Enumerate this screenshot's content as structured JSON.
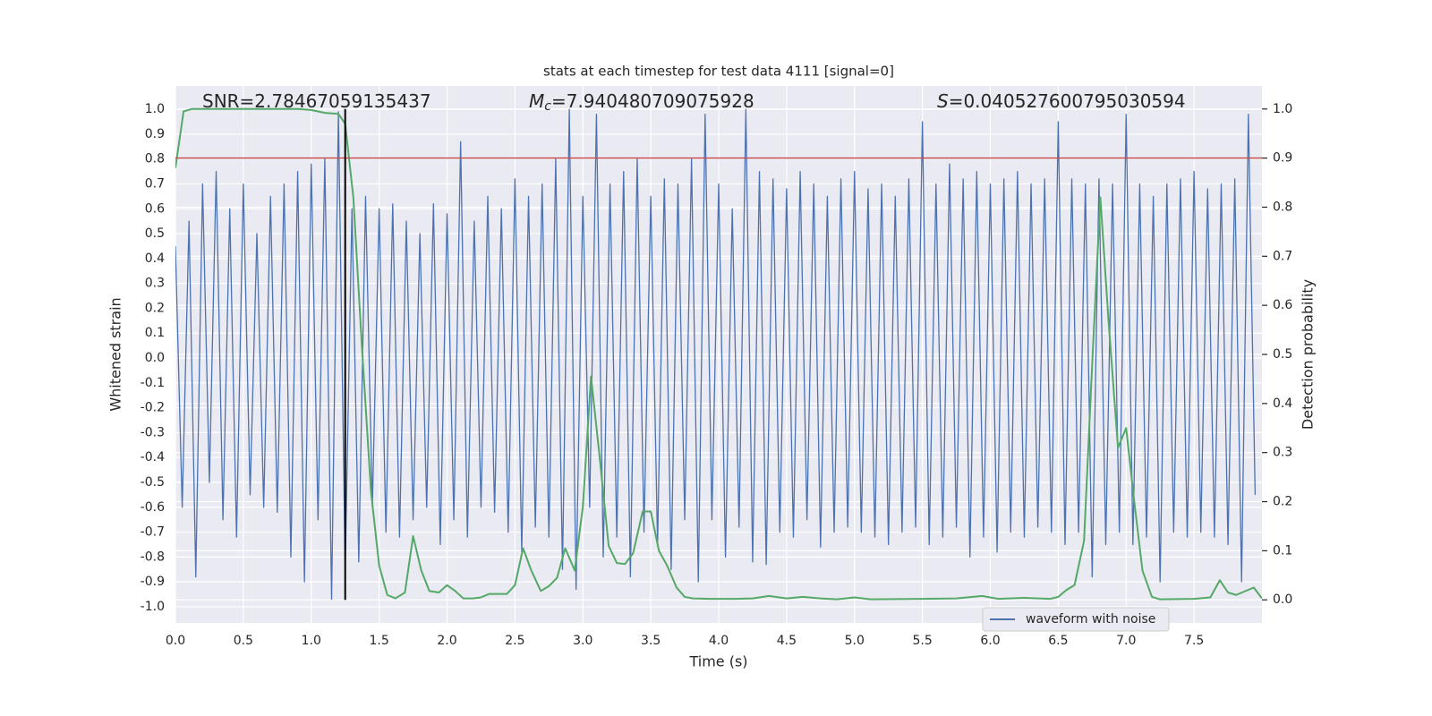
{
  "chart_data": {
    "type": "line",
    "title": "stats at each timestep for test data 4111 [signal=0]",
    "xlabel": "Time (s)",
    "ylabel": "Whitened strain",
    "y2label": "Detection probability",
    "annotations": [
      {
        "text": "SNR=2.78467059135437"
      },
      {
        "symbol": "M",
        "subscript": "c",
        "text": "=7.940480709075928"
      },
      {
        "symbol": "S",
        "text": "=0.040527600795030594"
      }
    ],
    "xlim": [
      0,
      8
    ],
    "xticks": [
      {
        "value": 0,
        "label": "0.0"
      },
      0.5,
      {
        "value": 1,
        "label": "1.0"
      },
      1.5,
      {
        "value": 2,
        "label": "2.0"
      },
      2.5,
      {
        "value": 3,
        "label": "3.0"
      },
      3.5,
      {
        "value": 4,
        "label": "4.0"
      },
      4.5,
      {
        "value": 5,
        "label": "5.0"
      },
      5.5,
      {
        "value": 6,
        "label": "6.0"
      },
      6.5,
      {
        "value": 7,
        "label": "7.0"
      },
      7.5
    ],
    "ylim": [
      -1.065,
      1.094
    ],
    "yticks": [
      {
        "value": -1,
        "label": "-1.0"
      },
      -0.9,
      -0.8,
      -0.7,
      -0.6,
      -0.5,
      -0.4,
      -0.3,
      -0.2,
      -0.1,
      {
        "value": 0,
        "label": "0.0"
      },
      0.1,
      0.2,
      0.3,
      0.4,
      0.5,
      0.6,
      0.7,
      0.8,
      0.9,
      {
        "value": 1,
        "label": "1.0"
      }
    ],
    "y2lim": [
      -0.047,
      1.047
    ],
    "y2ticks": [
      {
        "value": 0,
        "label": "0.0"
      },
      0.1,
      0.2,
      0.3,
      0.4,
      0.5,
      0.6,
      0.7,
      0.8,
      0.9,
      {
        "value": 1,
        "label": "1.0"
      }
    ],
    "grid": true,
    "legend": "lower right",
    "threshold": {
      "value": 0.9,
      "axis": "y2",
      "color": "#c44e52"
    },
    "vline": {
      "x": 1.25,
      "color": "#000000"
    },
    "series": [
      {
        "name": "waveform with noise",
        "color": "#4c72b0",
        "x": [
          0,
          0.05,
          0.1,
          0.15,
          0.2,
          0.25,
          0.3,
          0.35,
          0.4,
          0.45,
          0.5,
          0.55,
          0.6,
          0.65,
          0.7,
          0.75,
          0.8,
          0.85,
          0.9,
          0.95,
          1,
          1.05,
          1.1,
          1.15,
          1.2,
          1.25,
          1.3,
          1.35,
          1.4,
          1.45,
          1.5,
          1.55,
          1.6,
          1.65,
          1.7,
          1.75,
          1.8,
          1.85,
          1.9,
          1.95,
          2,
          2.05,
          2.1,
          2.15,
          2.2,
          2.25,
          2.3,
          2.35,
          2.4,
          2.45,
          2.5,
          2.55,
          2.6,
          2.65,
          2.7,
          2.75,
          2.8,
          2.85,
          2.9,
          2.95,
          3,
          3.05,
          3.1,
          3.15,
          3.2,
          3.25,
          3.3,
          3.35,
          3.4,
          3.45,
          3.5,
          3.55,
          3.6,
          3.65,
          3.7,
          3.75,
          3.8,
          3.85,
          3.9,
          3.95,
          4,
          4.05,
          4.1,
          4.15,
          4.2,
          4.25,
          4.3,
          4.35,
          4.4,
          4.45,
          4.5,
          4.55,
          4.6,
          4.65,
          4.7,
          4.75,
          4.8,
          4.85,
          4.9,
          4.95,
          5,
          5.05,
          5.1,
          5.15,
          5.2,
          5.25,
          5.3,
          5.35,
          5.4,
          5.45,
          5.5,
          5.55,
          5.6,
          5.65,
          5.7,
          5.75,
          5.8,
          5.85,
          5.9,
          5.95,
          6,
          6.05,
          6.1,
          6.15,
          6.2,
          6.25,
          6.3,
          6.35,
          6.4,
          6.45,
          6.5,
          6.55,
          6.6,
          6.65,
          6.7,
          6.75,
          6.8,
          6.85,
          6.9,
          6.95,
          7,
          7.05,
          7.1,
          7.15,
          7.2,
          7.25,
          7.3,
          7.35,
          7.4,
          7.45,
          7.5,
          7.55,
          7.6,
          7.65,
          7.7,
          7.75,
          7.8,
          7.85,
          7.9,
          7.95
        ],
        "values": [
          0.45,
          -0.6,
          0.55,
          -0.88,
          0.7,
          -0.5,
          0.75,
          -0.65,
          0.6,
          -0.72,
          0.7,
          -0.55,
          0.5,
          -0.6,
          0.65,
          -0.62,
          0.7,
          -0.8,
          0.75,
          -0.9,
          0.78,
          -0.65,
          0.8,
          -0.97,
          0.99,
          -0.85,
          0.6,
          -0.82,
          0.65,
          -0.6,
          0.6,
          -0.7,
          0.62,
          -0.72,
          0.55,
          -0.65,
          0.5,
          -0.6,
          0.62,
          -0.75,
          0.58,
          -0.65,
          0.87,
          -0.72,
          0.55,
          -0.6,
          0.65,
          -0.62,
          0.6,
          -0.7,
          0.72,
          -0.78,
          0.65,
          -0.68,
          0.7,
          -0.72,
          0.8,
          -0.85,
          1.0,
          -0.93,
          0.65,
          -0.6,
          0.98,
          -0.8,
          0.7,
          -0.72,
          0.75,
          -0.88,
          0.8,
          -0.7,
          0.65,
          -0.75,
          0.72,
          -0.85,
          0.7,
          -0.65,
          0.8,
          -0.9,
          0.98,
          -0.65,
          0.7,
          -0.8,
          0.6,
          -0.68,
          1.0,
          -0.82,
          0.75,
          -0.83,
          0.72,
          -0.7,
          0.68,
          -0.72,
          0.75,
          -0.65,
          0.7,
          -0.76,
          0.65,
          -0.7,
          0.72,
          -0.68,
          0.75,
          -0.7,
          0.68,
          -0.72,
          0.7,
          -0.75,
          0.65,
          -0.7,
          0.72,
          -0.68,
          0.95,
          -0.75,
          0.7,
          -0.72,
          0.78,
          -0.68,
          0.72,
          -0.8,
          0.75,
          -0.72,
          0.7,
          -0.78,
          0.72,
          -0.7,
          0.75,
          -0.72,
          0.7,
          -0.68,
          0.72,
          -0.7,
          0.95,
          -0.75,
          0.72,
          -0.7,
          0.7,
          -0.88,
          0.72,
          -0.75,
          0.7,
          -0.7,
          0.98,
          -0.75,
          0.7,
          -0.72,
          0.65,
          -0.9,
          0.7,
          -0.7,
          0.72,
          -0.72,
          0.75,
          -0.7,
          0.68,
          -0.72,
          0.7,
          -0.75,
          0.72,
          -0.9,
          0.98,
          -0.55
        ]
      },
      {
        "color": "#55a868",
        "axis": "y2",
        "x": [
          0,
          0.06,
          0.12,
          0.3,
          0.6,
          0.9,
          1.0,
          1.1,
          1.2,
          1.25,
          1.31,
          1.37,
          1.44,
          1.5,
          1.56,
          1.62,
          1.69,
          1.75,
          1.81,
          1.87,
          1.94,
          2.0,
          2.06,
          2.12,
          2.19,
          2.25,
          2.31,
          2.44,
          2.5,
          2.56,
          2.62,
          2.69,
          2.75,
          2.81,
          2.87,
          2.94,
          3.0,
          3.06,
          3.12,
          3.19,
          3.25,
          3.31,
          3.37,
          3.44,
          3.5,
          3.56,
          3.62,
          3.69,
          3.75,
          3.81,
          3.94,
          4.12,
          4.25,
          4.37,
          4.5,
          4.62,
          4.75,
          4.87,
          5.0,
          5.12,
          5.5,
          5.75,
          5.94,
          6.06,
          6.25,
          6.44,
          6.5,
          6.56,
          6.62,
          6.69,
          6.75,
          6.81,
          6.87,
          6.94,
          7.0,
          7.06,
          7.12,
          7.19,
          7.25,
          7.5,
          7.62,
          7.69,
          7.75,
          7.81,
          7.94,
          8.0
        ],
        "values": [
          0.88,
          0.995,
          1.0,
          1.0,
          1.0,
          1.0,
          0.998,
          0.992,
          0.99,
          0.97,
          0.82,
          0.53,
          0.22,
          0.07,
          0.01,
          0.003,
          0.015,
          0.13,
          0.06,
          0.018,
          0.015,
          0.03,
          0.018,
          0.003,
          0.003,
          0.005,
          0.012,
          0.012,
          0.03,
          0.105,
          0.06,
          0.018,
          0.028,
          0.045,
          0.105,
          0.06,
          0.19,
          0.455,
          0.3,
          0.11,
          0.075,
          0.073,
          0.095,
          0.18,
          0.18,
          0.1,
          0.07,
          0.025,
          0.006,
          0.003,
          0.002,
          0.002,
          0.003,
          0.008,
          0.003,
          0.006,
          0.003,
          0.001,
          0.005,
          0.001,
          0.002,
          0.003,
          0.008,
          0.002,
          0.004,
          0.002,
          0.006,
          0.02,
          0.03,
          0.12,
          0.48,
          0.82,
          0.57,
          0.31,
          0.35,
          0.2,
          0.06,
          0.006,
          0.001,
          0.002,
          0.005,
          0.04,
          0.015,
          0.01,
          0.025,
          0.003
        ]
      }
    ]
  }
}
